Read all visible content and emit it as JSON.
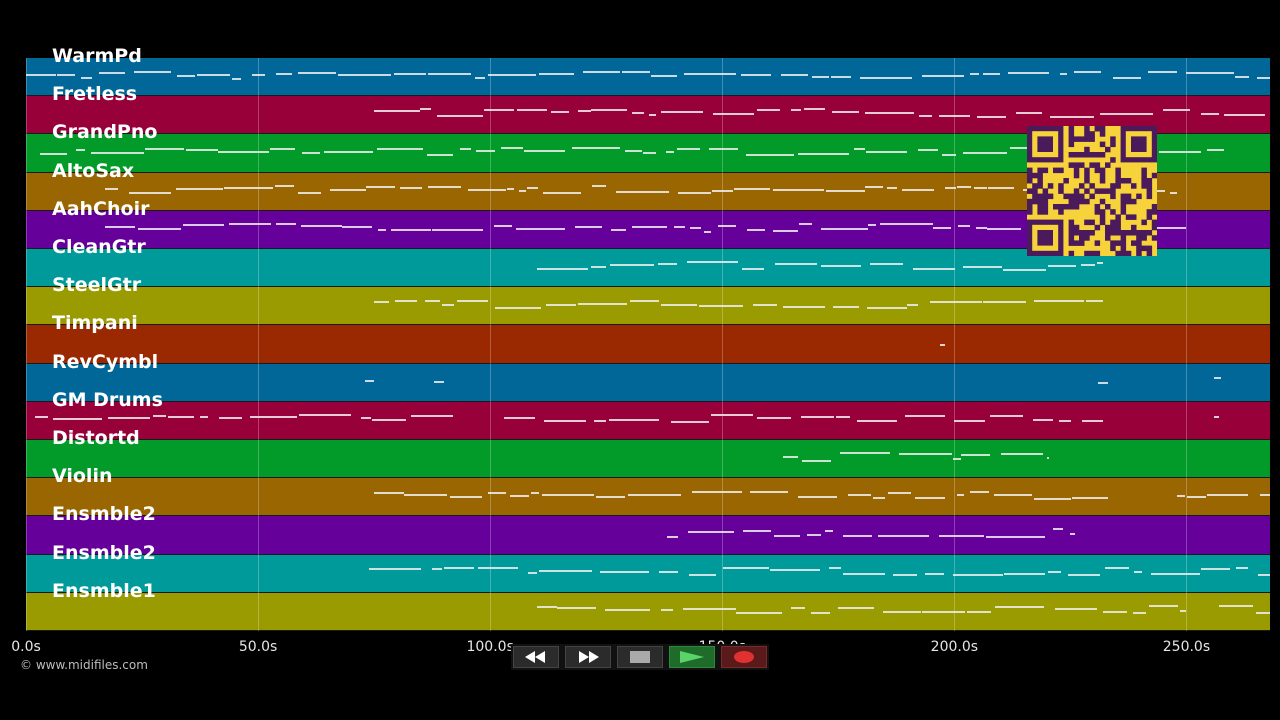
{
  "tracks": [
    {
      "name": "WarmPd",
      "color": "#016698"
    },
    {
      "name": "Fretless",
      "color": "#98003a"
    },
    {
      "name": "GrandPno",
      "color": "#029a28"
    },
    {
      "name": "AltoSax",
      "color": "#9a6602"
    },
    {
      "name": "AahChoir",
      "color": "#65009b"
    },
    {
      "name": "CleanGtr",
      "color": "#009a9b"
    },
    {
      "name": "SteelGtr",
      "color": "#9a9a01"
    },
    {
      "name": "Timpani",
      "color": "#9a2801"
    },
    {
      "name": "RevCymbl",
      "color": "#016698"
    },
    {
      "name": "GM Drums",
      "color": "#98003a"
    },
    {
      "name": "Distortd",
      "color": "#029a28"
    },
    {
      "name": "Violin",
      "color": "#9a6602"
    },
    {
      "name": "Ensmble2",
      "color": "#65009b"
    },
    {
      "name": "Ensmble2",
      "color": "#009a9b"
    },
    {
      "name": "Ensmble1",
      "color": "#9a9a01"
    }
  ],
  "timeline": {
    "min": 0,
    "max": 268,
    "ticks": [
      {
        "value": 0,
        "label": "0.0s"
      },
      {
        "value": 50,
        "label": "50.0s"
      },
      {
        "value": 100,
        "label": "100.0s"
      },
      {
        "value": 150,
        "label": "150.0s"
      },
      {
        "value": 200,
        "label": "200.0s"
      },
      {
        "value": 250,
        "label": "250.0s"
      }
    ]
  },
  "copyright": "© www.midifiles.com",
  "controls": [
    {
      "name": "rewind-button",
      "icon": "rewind-icon"
    },
    {
      "name": "fast-forward-button",
      "icon": "fast-forward-icon"
    },
    {
      "name": "stop-button",
      "icon": "stop-icon"
    },
    {
      "name": "play-button",
      "icon": "play-icon",
      "color": "#3cbf4a"
    },
    {
      "name": "record-button",
      "icon": "record-icon",
      "color": "#e03030"
    }
  ],
  "qr_color": "#4a1a5a"
}
